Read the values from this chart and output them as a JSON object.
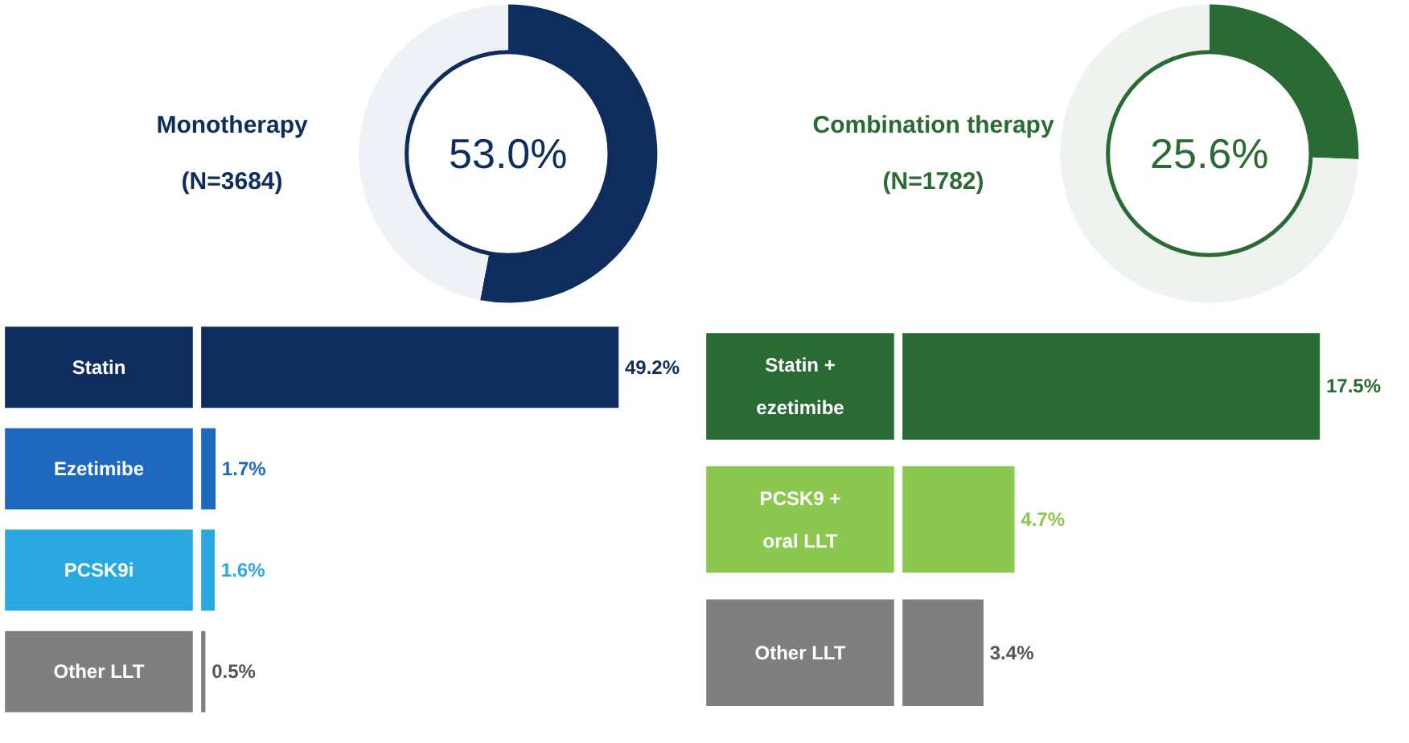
{
  "chart_data": [
    {
      "type": "donut",
      "title": "Monotherapy",
      "subtitle": "(N=3684)",
      "categories": [
        null,
        null
      ],
      "values": [
        53.0,
        47.0
      ],
      "colors": [
        "#0e2c5c",
        "#eef1f5"
      ],
      "annotations": [
        "53.0%"
      ]
    },
    {
      "type": "bar",
      "orientation": "horizontal",
      "categories": [
        "Statin",
        "Ezetimibe",
        "PCSK9i",
        "Other LLT"
      ],
      "values": [
        49.2,
        1.7,
        1.6,
        0.5
      ],
      "colors": [
        "#0e2c5c",
        "#1f68c0",
        "#2aa8e0",
        "#7f7f7f"
      ],
      "value_labels": [
        "49.2%",
        "1.7%",
        "1.6%",
        "0.5%"
      ]
    },
    {
      "type": "donut",
      "title": "Combination therapy",
      "subtitle": "(N=1782)",
      "categories": [
        null,
        null
      ],
      "values": [
        25.6,
        74.4
      ],
      "colors": [
        "#2a6a34",
        "#eef3ef"
      ],
      "annotations": [
        "25.6%"
      ]
    },
    {
      "type": "bar",
      "orientation": "horizontal",
      "categories": [
        "Statin + ezetimibe",
        "PCSK9 + oral LLT",
        "Other LLT"
      ],
      "values": [
        17.5,
        4.7,
        3.4
      ],
      "colors": [
        "#2a6a34",
        "#8cc850",
        "#7f7f7f"
      ],
      "value_labels": [
        "17.5%",
        "4.7%",
        "3.4%"
      ]
    }
  ]
}
